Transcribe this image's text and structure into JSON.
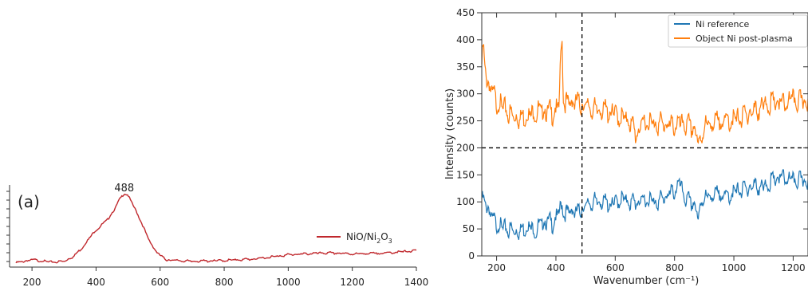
{
  "chart_data": [
    {
      "type": "line",
      "panel_label": "(a)",
      "xlim": [
        130,
        1400
      ],
      "ylim": [
        0,
        1
      ],
      "xticks": [
        200,
        400,
        600,
        800,
        1000,
        1200,
        1400
      ],
      "yticks_shown": false,
      "annotations": [
        {
          "text": "488",
          "x": 488
        }
      ],
      "series": [
        {
          "name": "NiO/Ni2O3",
          "name_main": "NiO/Ni",
          "name_sub1": "2",
          "name_mid": "O",
          "name_sub2": "3",
          "color": "#c0282d",
          "x": [
            150,
            200,
            260,
            300,
            330,
            360,
            380,
            400,
            420,
            440,
            460,
            470,
            480,
            488,
            500,
            510,
            520,
            540,
            560,
            580,
            600,
            620,
            650,
            700,
            800,
            900,
            1000,
            1050,
            1100,
            1150,
            1200,
            1300,
            1400
          ],
          "y": [
            0.05,
            0.09,
            0.06,
            0.07,
            0.13,
            0.25,
            0.36,
            0.45,
            0.52,
            0.6,
            0.72,
            0.8,
            0.86,
            0.9,
            0.87,
            0.8,
            0.72,
            0.56,
            0.37,
            0.23,
            0.14,
            0.09,
            0.08,
            0.07,
            0.08,
            0.1,
            0.15,
            0.16,
            0.17,
            0.17,
            0.16,
            0.17,
            0.2
          ]
        }
      ]
    },
    {
      "type": "line",
      "xlabel": "Wavenumber (cm⁻¹)",
      "ylabel": "Intensity (counts)",
      "xlim": [
        150,
        1250
      ],
      "ylim": [
        0,
        450
      ],
      "xticks": [
        200,
        400,
        600,
        800,
        1000,
        1200
      ],
      "yticks": [
        0,
        50,
        100,
        150,
        200,
        250,
        300,
        350,
        400,
        450
      ],
      "legend_position": "top-right",
      "reference_lines": [
        {
          "orientation": "vertical",
          "value": 488
        },
        {
          "orientation": "horizontal",
          "value": 200
        }
      ],
      "series": [
        {
          "name": "Ni reference",
          "color": "#1f77b4",
          "x": [
            150,
            170,
            190,
            210,
            230,
            250,
            270,
            290,
            310,
            330,
            350,
            370,
            390,
            410,
            420,
            430,
            450,
            470,
            488,
            510,
            530,
            560,
            590,
            620,
            650,
            680,
            710,
            740,
            770,
            800,
            820,
            830,
            850,
            870,
            880,
            890,
            920,
            950,
            980,
            1010,
            1040,
            1070,
            1100,
            1130,
            1160,
            1190,
            1220,
            1250
          ],
          "y": [
            105,
            90,
            65,
            55,
            50,
            48,
            45,
            50,
            55,
            45,
            60,
            65,
            60,
            80,
            95,
            75,
            85,
            80,
            88,
            95,
            100,
            100,
            95,
            105,
            100,
            100,
            105,
            100,
            110,
            120,
            135,
            110,
            100,
            95,
            60,
            105,
            110,
            115,
            110,
            120,
            125,
            130,
            125,
            140,
            145,
            140,
            140,
            140
          ]
        },
        {
          "name": "Object Ni post-plasma",
          "color": "#ff7f0e",
          "x": [
            150,
            155,
            160,
            170,
            180,
            200,
            220,
            250,
            280,
            300,
            330,
            360,
            390,
            410,
            420,
            425,
            430,
            450,
            470,
            488,
            510,
            530,
            560,
            590,
            620,
            650,
            670,
            700,
            730,
            760,
            790,
            820,
            850,
            870,
            880,
            900,
            930,
            960,
            990,
            1020,
            1050,
            1080,
            1110,
            1140,
            1170,
            1200,
            1220,
            1250
          ],
          "y": [
            355,
            385,
            350,
            320,
            310,
            285,
            275,
            260,
            255,
            260,
            265,
            270,
            265,
            275,
            415,
            300,
            280,
            285,
            285,
            280,
            275,
            270,
            270,
            265,
            255,
            250,
            225,
            250,
            245,
            245,
            240,
            245,
            240,
            235,
            200,
            240,
            245,
            250,
            250,
            255,
            265,
            270,
            280,
            285,
            280,
            290,
            285,
            290
          ]
        }
      ]
    }
  ]
}
